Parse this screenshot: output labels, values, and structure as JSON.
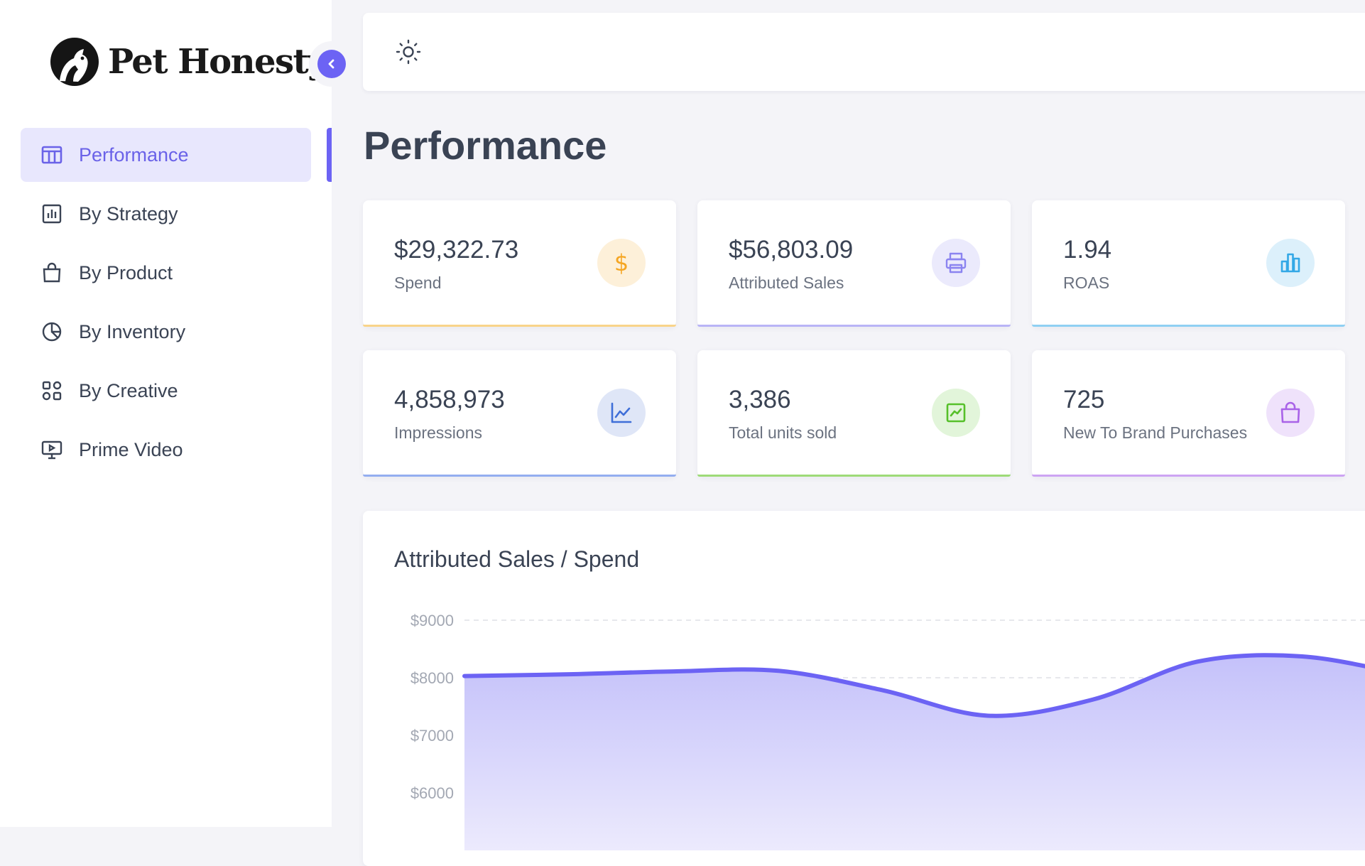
{
  "brand": {
    "name": "Pet Honesty"
  },
  "sidebar": {
    "items": [
      {
        "label": "Performance",
        "icon": "columns-icon",
        "active": true
      },
      {
        "label": "By Strategy",
        "icon": "bar-chart-icon"
      },
      {
        "label": "By Product",
        "icon": "shopping-bag-icon"
      },
      {
        "label": "By Inventory",
        "icon": "pie-chart-icon"
      },
      {
        "label": "By Creative",
        "icon": "grid-icon"
      },
      {
        "label": "Prime Video",
        "icon": "presentation-icon"
      }
    ]
  },
  "page": {
    "title": "Performance"
  },
  "metrics": [
    {
      "value": "$29,322.73",
      "label": "Spend",
      "icon": "dollar-icon",
      "color": "#f5a623",
      "bg": "#fdf0d9"
    },
    {
      "value": "$56,803.09",
      "label": "Attributed Sales",
      "icon": "printer-icon",
      "color": "#8b84f0",
      "bg": "#ebeafc"
    },
    {
      "value": "1.94",
      "label": "ROAS",
      "icon": "bar-chart-icon",
      "color": "#33a8e6",
      "bg": "#dcf0fb"
    },
    {
      "value": "4,858,973",
      "label": "Impressions",
      "icon": "line-chart-icon",
      "color": "#3f6fd8",
      "bg": "#dfe6f7"
    },
    {
      "value": "3,386",
      "label": "Total units sold",
      "icon": "trend-square-icon",
      "color": "#56c02a",
      "bg": "#e2f5da"
    },
    {
      "value": "725",
      "label": "New To Brand Purchases",
      "icon": "shopping-bag-icon",
      "color": "#a963e8",
      "bg": "#efe2fb"
    }
  ],
  "chart": {
    "title": "Attributed Sales / Spend"
  },
  "chart_data": {
    "type": "area",
    "title": "Attributed Sales / Spend",
    "y_tick_labels": [
      "$9000",
      "$8000",
      "$7000",
      "$6000"
    ],
    "y_ticks": [
      9000,
      8000,
      7000,
      6000
    ],
    "ylim": [
      5000,
      9000
    ],
    "grid": true,
    "series": [
      {
        "values": [
          8030,
          8060,
          8110,
          8120,
          7780,
          7340,
          7620,
          8280,
          8370,
          8050
        ],
        "color": "#6c63f4"
      }
    ]
  }
}
